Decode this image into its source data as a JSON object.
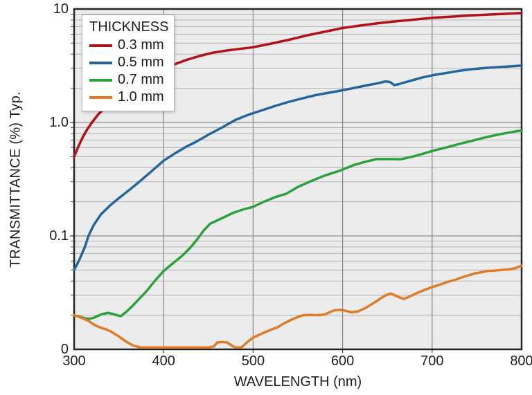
{
  "chart_data": {
    "type": "line",
    "title": "",
    "xlabel": "WAVELENGTH (nm)",
    "ylabel": "TRANSMITTANCE (%) Typ.",
    "grid": true,
    "plot_background": "#ececec",
    "grid_major_color": "#8c8c8c",
    "grid_minor_color": "#b3b3b3",
    "frame_color": "#262626",
    "x_axis": {
      "min": 300,
      "max": 800,
      "scale": "linear",
      "ticks": [
        {
          "label": "300",
          "value": 300
        },
        {
          "label": "400",
          "value": 400
        },
        {
          "label": "500",
          "value": 500
        },
        {
          "label": "600",
          "value": 600
        },
        {
          "label": "700",
          "value": 700
        },
        {
          "label": "800",
          "value": 800
        }
      ]
    },
    "y_axis": {
      "min": 0.01,
      "max": 10,
      "scale": "log",
      "note": "bottom of axis labeled 0",
      "ticks": [
        {
          "label": "10",
          "value": 10
        },
        {
          "label": "1.0",
          "value": 1.0
        },
        {
          "label": "0.1",
          "value": 0.1
        },
        {
          "label": "0",
          "value": 0.01
        }
      ]
    },
    "legend_title": "THICKNESS",
    "legend_position": "top-left-inside",
    "series": [
      {
        "label": "0.3 mm",
        "color": "#b01218",
        "points": [
          [
            300,
            0.5
          ],
          [
            305,
            0.62
          ],
          [
            310,
            0.75
          ],
          [
            315,
            0.88
          ],
          [
            320,
            1.0
          ],
          [
            327,
            1.18
          ],
          [
            335,
            1.35
          ],
          [
            345,
            1.58
          ],
          [
            355,
            1.82
          ],
          [
            365,
            2.08
          ],
          [
            375,
            2.32
          ],
          [
            385,
            2.58
          ],
          [
            400,
            2.95
          ],
          [
            412,
            3.25
          ],
          [
            425,
            3.55
          ],
          [
            440,
            3.85
          ],
          [
            455,
            4.12
          ],
          [
            470,
            4.3
          ],
          [
            485,
            4.45
          ],
          [
            500,
            4.6
          ],
          [
            520,
            4.95
          ],
          [
            540,
            5.35
          ],
          [
            560,
            5.85
          ],
          [
            580,
            6.3
          ],
          [
            600,
            6.8
          ],
          [
            620,
            7.15
          ],
          [
            640,
            7.5
          ],
          [
            660,
            7.8
          ],
          [
            680,
            8.05
          ],
          [
            700,
            8.35
          ],
          [
            720,
            8.55
          ],
          [
            740,
            8.75
          ],
          [
            760,
            8.9
          ],
          [
            780,
            9.05
          ],
          [
            800,
            9.2
          ]
        ]
      },
      {
        "label": "0.5 mm",
        "color": "#2465a0",
        "points": [
          [
            300,
            0.05
          ],
          [
            306,
            0.062
          ],
          [
            312,
            0.08
          ],
          [
            316,
            0.1
          ],
          [
            322,
            0.125
          ],
          [
            330,
            0.155
          ],
          [
            340,
            0.185
          ],
          [
            350,
            0.215
          ],
          [
            362,
            0.255
          ],
          [
            375,
            0.31
          ],
          [
            388,
            0.38
          ],
          [
            400,
            0.46
          ],
          [
            412,
            0.53
          ],
          [
            425,
            0.61
          ],
          [
            437,
            0.68
          ],
          [
            450,
            0.78
          ],
          [
            465,
            0.9
          ],
          [
            480,
            1.05
          ],
          [
            495,
            1.17
          ],
          [
            510,
            1.28
          ],
          [
            525,
            1.4
          ],
          [
            540,
            1.52
          ],
          [
            555,
            1.63
          ],
          [
            570,
            1.74
          ],
          [
            585,
            1.83
          ],
          [
            600,
            1.92
          ],
          [
            615,
            2.03
          ],
          [
            628,
            2.13
          ],
          [
            640,
            2.22
          ],
          [
            648,
            2.3
          ],
          [
            653,
            2.27
          ],
          [
            658,
            2.13
          ],
          [
            663,
            2.18
          ],
          [
            675,
            2.32
          ],
          [
            690,
            2.5
          ],
          [
            700,
            2.6
          ],
          [
            715,
            2.72
          ],
          [
            730,
            2.85
          ],
          [
            745,
            2.95
          ],
          [
            760,
            3.02
          ],
          [
            775,
            3.08
          ],
          [
            790,
            3.13
          ],
          [
            800,
            3.17
          ]
        ]
      },
      {
        "label": "0.7 mm",
        "color": "#2aa13b",
        "points": [
          [
            300,
            0.02
          ],
          [
            308,
            0.0192
          ],
          [
            316,
            0.0185
          ],
          [
            322,
            0.019
          ],
          [
            330,
            0.0203
          ],
          [
            338,
            0.021
          ],
          [
            345,
            0.0203
          ],
          [
            352,
            0.0196
          ],
          [
            358,
            0.0213
          ],
          [
            365,
            0.024
          ],
          [
            372,
            0.0275
          ],
          [
            380,
            0.032
          ],
          [
            390,
            0.04
          ],
          [
            400,
            0.049
          ],
          [
            410,
            0.057
          ],
          [
            420,
            0.066
          ],
          [
            430,
            0.079
          ],
          [
            437,
            0.092
          ],
          [
            445,
            0.112
          ],
          [
            452,
            0.128
          ],
          [
            465,
            0.143
          ],
          [
            478,
            0.16
          ],
          [
            490,
            0.172
          ],
          [
            500,
            0.18
          ],
          [
            512,
            0.2
          ],
          [
            525,
            0.22
          ],
          [
            537,
            0.235
          ],
          [
            550,
            0.27
          ],
          [
            565,
            0.305
          ],
          [
            580,
            0.34
          ],
          [
            597,
            0.376
          ],
          [
            612,
            0.42
          ],
          [
            625,
            0.45
          ],
          [
            638,
            0.475
          ],
          [
            652,
            0.476
          ],
          [
            665,
            0.474
          ],
          [
            678,
            0.5
          ],
          [
            690,
            0.53
          ],
          [
            700,
            0.56
          ],
          [
            715,
            0.6
          ],
          [
            730,
            0.645
          ],
          [
            745,
            0.69
          ],
          [
            760,
            0.74
          ],
          [
            775,
            0.785
          ],
          [
            790,
            0.825
          ],
          [
            800,
            0.85
          ]
        ]
      },
      {
        "label": "1.0 mm",
        "color": "#e07c28",
        "points": [
          [
            300,
            0.02
          ],
          [
            308,
            0.019
          ],
          [
            316,
            0.0178
          ],
          [
            324,
            0.0162
          ],
          [
            330,
            0.0155
          ],
          [
            336,
            0.015
          ],
          [
            342,
            0.0142
          ],
          [
            350,
            0.013
          ],
          [
            358,
            0.0117
          ],
          [
            366,
            0.0108
          ],
          [
            374,
            0.0104
          ],
          [
            390,
            0.0104
          ],
          [
            410,
            0.0104
          ],
          [
            430,
            0.0104
          ],
          [
            450,
            0.0104
          ],
          [
            456,
            0.0106
          ],
          [
            460,
            0.0115
          ],
          [
            466,
            0.0116
          ],
          [
            471,
            0.0115
          ],
          [
            476,
            0.0108
          ],
          [
            480,
            0.0104
          ],
          [
            487,
            0.0104
          ],
          [
            493,
            0.0115
          ],
          [
            500,
            0.0127
          ],
          [
            510,
            0.0138
          ],
          [
            518,
            0.0147
          ],
          [
            527,
            0.0156
          ],
          [
            535,
            0.017
          ],
          [
            543,
            0.0183
          ],
          [
            550,
            0.0193
          ],
          [
            556,
            0.02
          ],
          [
            565,
            0.0201
          ],
          [
            572,
            0.02
          ],
          [
            580,
            0.0203
          ],
          [
            590,
            0.022
          ],
          [
            598,
            0.0223
          ],
          [
            604,
            0.0218
          ],
          [
            610,
            0.0212
          ],
          [
            617,
            0.0216
          ],
          [
            624,
            0.0228
          ],
          [
            632,
            0.0248
          ],
          [
            640,
            0.0273
          ],
          [
            648,
            0.03
          ],
          [
            654,
            0.031
          ],
          [
            660,
            0.0295
          ],
          [
            668,
            0.0277
          ],
          [
            676,
            0.0295
          ],
          [
            684,
            0.0316
          ],
          [
            692,
            0.0335
          ],
          [
            700,
            0.0354
          ],
          [
            710,
            0.0375
          ],
          [
            718,
            0.0395
          ],
          [
            725,
            0.0408
          ],
          [
            731,
            0.0425
          ],
          [
            739,
            0.0445
          ],
          [
            747,
            0.0465
          ],
          [
            755,
            0.0478
          ],
          [
            762,
            0.049
          ],
          [
            770,
            0.0495
          ],
          [
            778,
            0.0502
          ],
          [
            786,
            0.0507
          ],
          [
            793,
            0.052
          ],
          [
            800,
            0.0547
          ]
        ]
      }
    ]
  }
}
